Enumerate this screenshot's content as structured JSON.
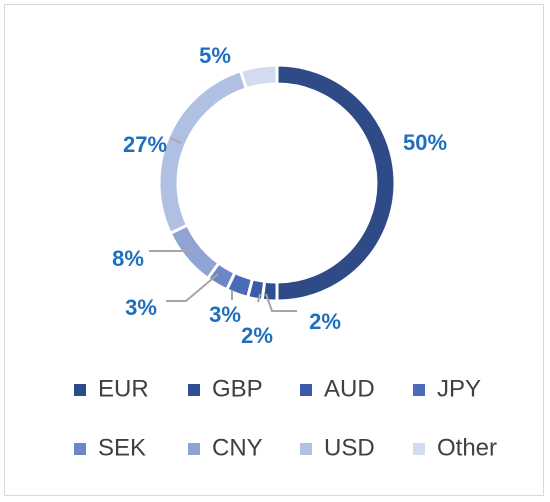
{
  "chart_data": {
    "type": "pie",
    "subtype": "donut",
    "categories": [
      "EUR",
      "GBP",
      "AUD",
      "JPY",
      "SEK",
      "CNY",
      "USD",
      "Other"
    ],
    "values": [
      50,
      2,
      2,
      3,
      3,
      8,
      27,
      5
    ],
    "labels": [
      "50%",
      "2%",
      "2%",
      "3%",
      "3%",
      "8%",
      "27%",
      "5%"
    ],
    "colors": [
      "#2e4a87",
      "#2f4f94",
      "#3a5ca6",
      "#4a6cb8",
      "#6c86c6",
      "#8fa4d3",
      "#b0c0e3",
      "#d3dcef"
    ],
    "label_color": "#1f6fbf",
    "legend_position": "bottom",
    "title": ""
  }
}
